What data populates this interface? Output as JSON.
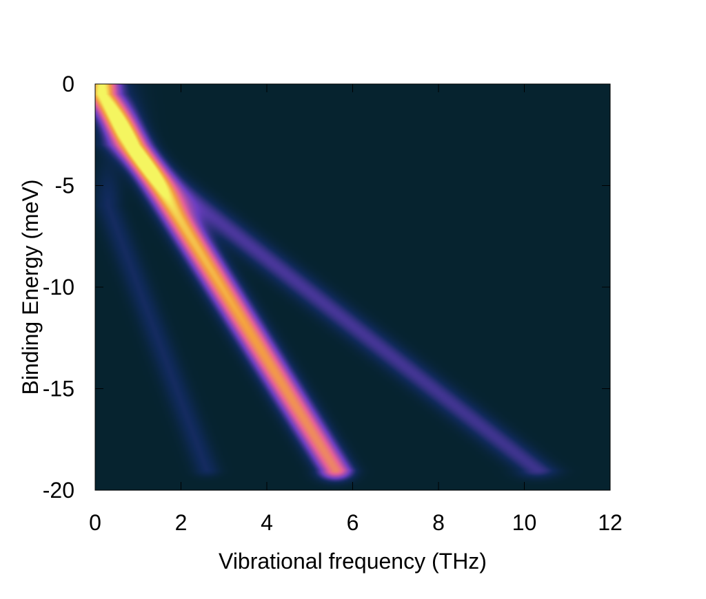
{
  "chart_data": {
    "type": "heatmap",
    "title": "",
    "xlabel": "Vibrational frequency (THz)",
    "ylabel": "Binding Energy (meV)",
    "xlim": [
      0,
      12
    ],
    "ylim": [
      -20,
      0
    ],
    "xticks": [
      0,
      2,
      4,
      6,
      8,
      10,
      12
    ],
    "yticks": [
      0,
      -5,
      -10,
      -15,
      -20
    ],
    "xtick_labels": [
      "0",
      "2",
      "4",
      "6",
      "8",
      "10",
      "12"
    ],
    "ytick_labels": [
      "0",
      "-5",
      "-10",
      "-15",
      "-20"
    ],
    "grid": false,
    "legend": false,
    "colormap": [
      "#06232f",
      "#102a5a",
      "#6b3ec0",
      "#e4609a",
      "#f4a040",
      "#f4f560"
    ],
    "background_color": "#06232f",
    "bands": [
      {
        "name": "",
        "x_start": 0.15,
        "y_start": -0.5,
        "x_end": 5.6,
        "y_end": -19.0,
        "peak_intensity": 1.0,
        "end_intensity": 0.72,
        "width_thz": 0.55
      },
      {
        "name": "",
        "x_start": 0.6,
        "y_start": -3.0,
        "x_end": 10.3,
        "y_end": -19.0,
        "peak_intensity": 0.26,
        "end_intensity": 0.22,
        "width_thz": 0.7
      },
      {
        "name": "",
        "x_start": 0.3,
        "y_start": -6.0,
        "x_end": 2.6,
        "y_end": -19.0,
        "peak_intensity": 0.13,
        "end_intensity": 0.13,
        "width_thz": 0.45
      }
    ]
  }
}
